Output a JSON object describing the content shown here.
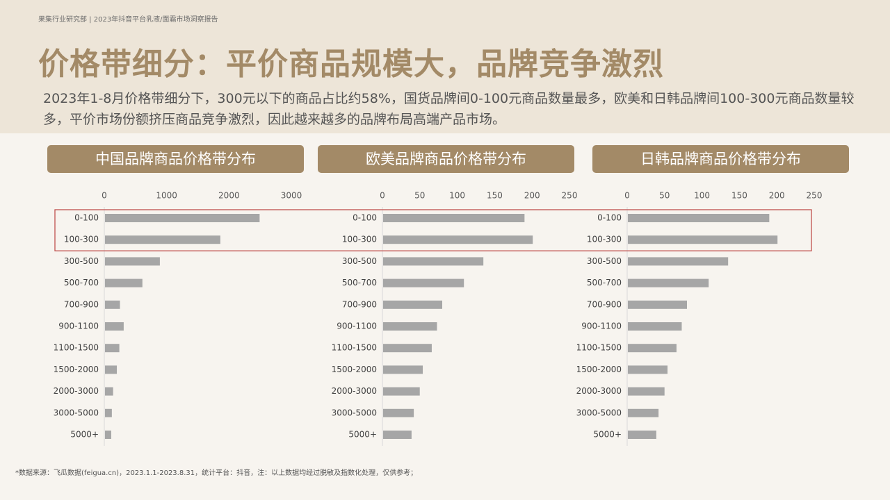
{
  "header": {
    "breadcrumb": "果集行业研究部 | 2023年抖音平台乳液/面霜市场洞察报告",
    "title": "价格带细分：平价商品规模大，品牌竞争激烈",
    "subtitle": "2023年1-8月价格带细分下，300元以下的商品占比约58%，国货品牌间0-100元商品数量最多，欧美和日韩品牌间100-300元商品数量较多，平价市场份额挤压商品竞争激烈，因此越来越多的品牌布局高端产品市场。"
  },
  "footnote": "*数据来源：飞瓜数据(feigua.cn)，2023.1.1-2023.8.31，统计平台：抖音，注：以上数据均经过脱敏及指数化处理，仅供参考；",
  "colors": {
    "bar": "#a6a6a6",
    "highlight": "#c0504d",
    "accent": "#a38a67"
  },
  "chart_data": [
    {
      "type": "bar",
      "orientation": "horizontal",
      "title": "中国品牌商品价格带分布",
      "categories": [
        "0-100",
        "100-300",
        "300-500",
        "500-700",
        "700-900",
        "900-1100",
        "1100-1500",
        "1500-2000",
        "2000-3000",
        "3000-5000",
        "5000+"
      ],
      "values": [
        2480,
        1850,
        880,
        600,
        240,
        300,
        230,
        190,
        130,
        110,
        100
      ],
      "xlim": [
        0,
        3000
      ],
      "ticks": [
        "0",
        "1000",
        "2000",
        "3000"
      ]
    },
    {
      "type": "bar",
      "orientation": "horizontal",
      "title": "欧美品牌商品价格带分布",
      "categories": [
        "0-100",
        "100-300",
        "300-500",
        "500-700",
        "700-900",
        "900-1100",
        "1100-1500",
        "1500-2000",
        "2000-3000",
        "3000-5000",
        "5000+"
      ],
      "values": [
        189,
        200,
        134,
        108,
        79,
        72,
        65,
        53,
        49,
        41,
        38
      ],
      "xlim": [
        0,
        250
      ],
      "ticks": [
        "0",
        "50",
        "100",
        "150",
        "200",
        "250"
      ]
    },
    {
      "type": "bar",
      "orientation": "horizontal",
      "title": "日韩品牌商品价格带分布",
      "categories": [
        "0-100",
        "100-300",
        "300-500",
        "500-700",
        "700-900",
        "900-1100",
        "1100-1500",
        "1500-2000",
        "2000-3000",
        "3000-5000",
        "5000+"
      ],
      "values": [
        189,
        200,
        134,
        108,
        79,
        72,
        65,
        53,
        49,
        41,
        38
      ],
      "xlim": [
        0,
        250
      ],
      "ticks": [
        "0",
        "50",
        "100",
        "150",
        "200",
        "250"
      ]
    }
  ]
}
